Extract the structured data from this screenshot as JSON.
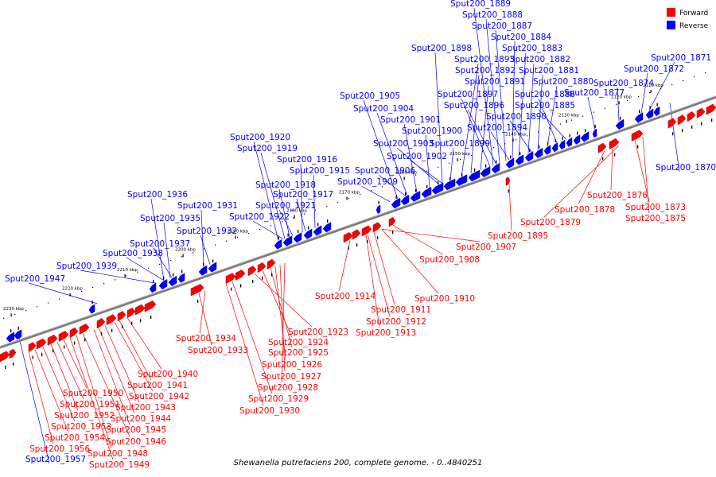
{
  "caption": "Shewanella putrefaciens 200, complete genome. - 0..4840251",
  "colors": {
    "forward": "#ff0000",
    "reverse": "#0000ff",
    "backbone": "#777777"
  },
  "legend": [
    {
      "label": "Forward",
      "color": "#ff0000"
    },
    {
      "label": "Reverse",
      "color": "#0000ff"
    }
  ],
  "scale_ticks": [
    "2110 kbp",
    "2120 kbp",
    "2130 kbp",
    "2140 kbp",
    "2150 kbp",
    "2160 kbp",
    "2170 kbp",
    "2180 kbp",
    "2190 kbp",
    "2200 kbp",
    "2210 kbp",
    "2220 kbp",
    "2230 kbp"
  ],
  "reverse_genes": [
    "Sput200_1889",
    "Sput200_1888",
    "Sput200_1887",
    "Sput200_1884",
    "Sput200_1883",
    "Sput200_1882",
    "Sput200_1881",
    "Sput200_1880",
    "Sput200_1898",
    "Sput200_1893",
    "Sput200_1892",
    "Sput200_1891",
    "Sput200_1897",
    "Sput200_1896",
    "Sput200_1886",
    "Sput200_1885",
    "Sput200_1890",
    "Sput200_1894",
    "Sput200_1877",
    "Sput200_1874",
    "Sput200_1872",
    "Sput200_1871",
    "Sput200_1905",
    "Sput200_1904",
    "Sput200_1901",
    "Sput200_1900",
    "Sput200_1903",
    "Sput200_1899",
    "Sput200_1902",
    "Sput200_1906",
    "Sput200_1909",
    "Sput200_1920",
    "Sput200_1919",
    "Sput200_1916",
    "Sput200_1915",
    "Sput200_1918",
    "Sput200_1917",
    "Sput200_1921",
    "Sput200_1922",
    "Sput200_1936",
    "Sput200_1931",
    "Sput200_1935",
    "Sput200_1932",
    "Sput200_1937",
    "Sput200_1938",
    "Sput200_1939",
    "Sput200_1947",
    "Sput200_1957",
    "Sput200_1870"
  ],
  "forward_genes": [
    "Sput200_1876",
    "Sput200_1873",
    "Sput200_1878",
    "Sput200_1875",
    "Sput200_1879",
    "Sput200_1895",
    "Sput200_1907",
    "Sput200_1908",
    "Sput200_1914",
    "Sput200_1910",
    "Sput200_1911",
    "Sput200_1912",
    "Sput200_1913",
    "Sput200_1934",
    "Sput200_1933",
    "Sput200_1923",
    "Sput200_1924",
    "Sput200_1925",
    "Sput200_1926",
    "Sput200_1927",
    "Sput200_1928",
    "Sput200_1929",
    "Sput200_1930",
    "Sput200_1940",
    "Sput200_1941",
    "Sput200_1942",
    "Sput200_1943",
    "Sput200_1944",
    "Sput200_1945",
    "Sput200_1946",
    "Sput200_1948",
    "Sput200_1949",
    "Sput200_1950",
    "Sput200_1951",
    "Sput200_1952",
    "Sput200_1953",
    "Sput200_1954",
    "Sput200_1956"
  ]
}
